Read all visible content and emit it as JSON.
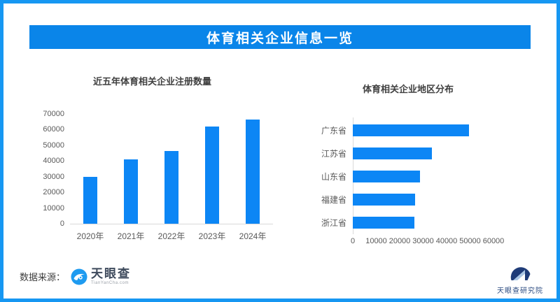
{
  "page": {
    "title": "体育相关企业信息一览"
  },
  "colors": {
    "border-blue": "#1697f2",
    "banner-blue": "#0a85e9",
    "bar-blue": "#0c86f5",
    "chart-title-text": "#404040",
    "axis-text": "#595959",
    "axis-line": "#d9d9d9",
    "footer-text": "#3d3d3d",
    "tyc-logo-blue": "#1e9bf0",
    "tyc-logo-text": "#3e4a5c",
    "org-navy": "#1f3c78",
    "org-light-blue": "#aac6e4",
    "org-text": "#2a4a80"
  },
  "chart_data": [
    {
      "type": "bar",
      "orientation": "vertical",
      "title": "近五年体育相关企业注册数量",
      "categories": [
        "2020年",
        "2021年",
        "2022年",
        "2023年",
        "2024年"
      ],
      "values": [
        30000,
        41000,
        46500,
        62000,
        66300
      ],
      "xlabel": "",
      "ylabel": "",
      "ylim": [
        0,
        70000
      ],
      "yticks": [
        0,
        10000,
        20000,
        30000,
        40000,
        50000,
        60000,
        70000
      ],
      "grid": false,
      "legend": false
    },
    {
      "type": "bar",
      "orientation": "horizontal",
      "title": "体育相关企业地区分布",
      "categories": [
        "广东省",
        "江苏省",
        "山东省",
        "福建省",
        "浙江省"
      ],
      "values": [
        49500,
        33600,
        28700,
        26600,
        26300
      ],
      "xlabel": "",
      "ylabel": "",
      "xlim": [
        0,
        60000
      ],
      "xticks": [
        0,
        10000,
        20000,
        30000,
        40000,
        50000,
        60000
      ],
      "grid": false,
      "legend": false
    }
  ],
  "footer": {
    "source_label": "数据来源：",
    "source_logo_text": "天眼查",
    "source_logo_sub": "TianYanCha.com",
    "org_logo_text": "天眼查研究院"
  }
}
